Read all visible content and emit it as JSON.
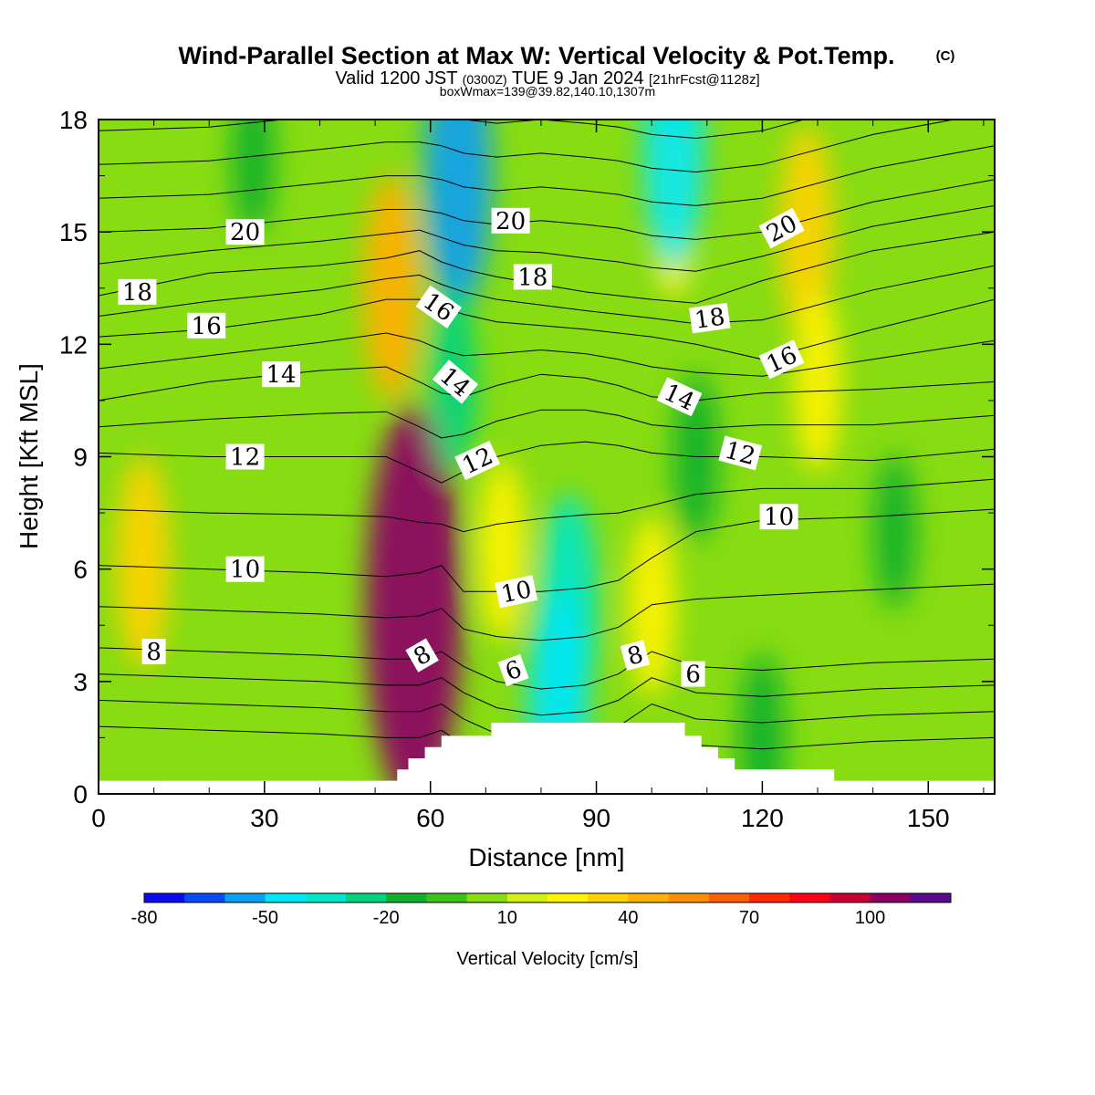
{
  "title": {
    "main": "Wind-Parallel Section at Max W: Vertical Velocity & Pot.Temp.",
    "copyright": "(C)",
    "valid_prefix": "Valid 1200 JST",
    "valid_utc": "(0300Z)",
    "valid_date": "TUE 9 Jan 2024",
    "forecast": "[21hrFcst@1128z]",
    "boxline": "boxWmax=139@39.82,140.10,1307m"
  },
  "chart_data": {
    "type": "heatmap",
    "xlabel": "Distance [nm]",
    "ylabel": "Height [Kft MSL]",
    "xlim": [
      0,
      162
    ],
    "ylim": [
      0,
      18
    ],
    "x_ticks": [
      0,
      30,
      60,
      90,
      120,
      150
    ],
    "x_tick_labels": [
      "0",
      "30",
      "60",
      "90",
      "120",
      "150"
    ],
    "y_ticks": [
      0,
      3,
      6,
      9,
      12,
      15,
      18
    ],
    "y_tick_labels": [
      "0",
      "3",
      "6",
      "9",
      "12",
      "15",
      "18"
    ],
    "x_minor_step": 10,
    "y_minor_step": 1.5,
    "colorbar": {
      "label": "Vertical Velocity [cm/s]",
      "levels": [
        -80,
        -70,
        -60,
        -50,
        -40,
        -30,
        -20,
        -10,
        0,
        10,
        20,
        30,
        40,
        50,
        60,
        70,
        80,
        90,
        100,
        110,
        120
      ],
      "tick_labels": [
        "-80",
        "-50",
        "-20",
        "10",
        "40",
        "70",
        "100"
      ],
      "colors": [
        "#0b0bf0",
        "#0a4af5",
        "#0aa0f0",
        "#00e6f5",
        "#00e6c8",
        "#00d27d",
        "#11b02c",
        "#3bc31a",
        "#87dc12",
        "#d2f014",
        "#fff200",
        "#ffd200",
        "#ffb000",
        "#ff9000",
        "#ff6000",
        "#ff2a00",
        "#ff0014",
        "#c80032",
        "#8c0064",
        "#5a0a8c"
      ]
    },
    "vertical_velocity_features": [
      {
        "kind": "updraft",
        "x": 57,
        "y": 5.0,
        "w": 100
      },
      {
        "kind": "updraft",
        "x": 8,
        "y": 6.2,
        "w": 35
      },
      {
        "kind": "updraft",
        "x": 53,
        "y": 13.5,
        "w": 40
      },
      {
        "kind": "updraft",
        "x": 73,
        "y": 6.5,
        "w": 25
      },
      {
        "kind": "updraft",
        "x": 100,
        "y": 5.0,
        "w": 25
      },
      {
        "kind": "updraft",
        "x": 104,
        "y": 15.5,
        "w": 20
      },
      {
        "kind": "updraft",
        "x": 128,
        "y": 15.0,
        "w": 35
      },
      {
        "kind": "updraft",
        "x": 130,
        "y": 11.0,
        "w": 25
      },
      {
        "kind": "downdraft",
        "x": 65,
        "y": 16.5,
        "w": -55
      },
      {
        "kind": "downdraft",
        "x": 64,
        "y": 11.0,
        "w": -25
      },
      {
        "kind": "downdraft",
        "x": 85,
        "y": 5.0,
        "w": -40
      },
      {
        "kind": "downdraft",
        "x": 83,
        "y": 2.3,
        "w": -45
      },
      {
        "kind": "downdraft",
        "x": 104,
        "y": 17.2,
        "w": -45
      },
      {
        "kind": "downdraft",
        "x": 108,
        "y": 9.0,
        "w": -20
      },
      {
        "kind": "downdraft",
        "x": 144,
        "y": 7.0,
        "w": -15
      },
      {
        "kind": "downdraft",
        "x": 28,
        "y": 17.0,
        "w": -15
      },
      {
        "kind": "downdraft",
        "x": 120,
        "y": 1.5,
        "w": -20
      }
    ],
    "theta_contours_labeled": [
      {
        "value": 8,
        "x": [
          0,
          20,
          40,
          52,
          58,
          62,
          66,
          72,
          80,
          88,
          94,
          100,
          108,
          120,
          140,
          162
        ],
        "y": [
          3.9,
          3.8,
          3.7,
          3.6,
          3.6,
          3.8,
          3.4,
          3.0,
          2.8,
          2.9,
          3.2,
          3.8,
          3.4,
          3.3,
          3.5,
          3.6
        ]
      },
      {
        "value": 10,
        "x": [
          0,
          20,
          40,
          52,
          58,
          62,
          66,
          72,
          80,
          88,
          94,
          100,
          108,
          120,
          140,
          162
        ],
        "y": [
          6.1,
          6.0,
          5.9,
          5.8,
          5.9,
          6.1,
          5.4,
          5.4,
          5.4,
          5.5,
          5.7,
          6.3,
          7.0,
          7.3,
          7.4,
          7.6
        ]
      },
      {
        "value": 12,
        "x": [
          0,
          20,
          40,
          52,
          58,
          62,
          66,
          72,
          80,
          88,
          94,
          100,
          108,
          120,
          140,
          162
        ],
        "y": [
          9.1,
          9.0,
          9.0,
          9.0,
          8.6,
          8.3,
          8.6,
          9.0,
          9.3,
          9.4,
          9.3,
          9.1,
          9.0,
          9.0,
          8.9,
          9.2
        ]
      },
      {
        "value": 14,
        "x": [
          0,
          20,
          40,
          52,
          58,
          62,
          66,
          72,
          80,
          88,
          94,
          100,
          108,
          120,
          140,
          162
        ],
        "y": [
          10.5,
          11.0,
          11.3,
          11.4,
          11.0,
          10.7,
          10.6,
          10.9,
          11.2,
          11.1,
          10.9,
          10.6,
          10.5,
          10.7,
          10.8,
          11.0
        ]
      },
      {
        "value": 16,
        "x": [
          0,
          20,
          40,
          52,
          58,
          62,
          66,
          72,
          80,
          88,
          94,
          100,
          108,
          120,
          140,
          162
        ],
        "y": [
          12.2,
          12.4,
          12.8,
          13.2,
          13.2,
          13.0,
          12.8,
          12.6,
          12.5,
          12.4,
          12.3,
          12.2,
          12.0,
          11.6,
          12.4,
          13.2
        ]
      },
      {
        "value": 18,
        "x": [
          0,
          20,
          40,
          52,
          58,
          62,
          66,
          72,
          80,
          88,
          94,
          100,
          108,
          120,
          140,
          162
        ],
        "y": [
          13.3,
          13.9,
          14.1,
          14.3,
          14.5,
          14.2,
          14.0,
          13.8,
          13.6,
          13.4,
          13.3,
          13.2,
          13.1,
          13.7,
          14.5,
          15.0
        ]
      },
      {
        "value": 20,
        "x": [
          0,
          20,
          40,
          52,
          58,
          62,
          66,
          72,
          80,
          88,
          94,
          100,
          108,
          120,
          140,
          162
        ],
        "y": [
          15.0,
          15.1,
          15.4,
          15.6,
          15.6,
          15.5,
          15.3,
          15.2,
          15.3,
          15.2,
          15.1,
          14.9,
          14.8,
          15.0,
          15.8,
          16.4
        ]
      }
    ],
    "contour_labels": [
      {
        "text": "20",
        "x": 26.5,
        "y": 15.0,
        "angle": 0
      },
      {
        "text": "18",
        "x": 7.0,
        "y": 13.4,
        "angle": 0
      },
      {
        "text": "16",
        "x": 19.5,
        "y": 12.5,
        "angle": 0
      },
      {
        "text": "14",
        "x": 33.0,
        "y": 11.2,
        "angle": 0
      },
      {
        "text": "12",
        "x": 26.5,
        "y": 9.0,
        "angle": 0
      },
      {
        "text": "10",
        "x": 26.5,
        "y": 6.0,
        "angle": 0
      },
      {
        "text": "8",
        "x": 10.0,
        "y": 3.8,
        "angle": 0
      },
      {
        "text": "16",
        "x": 61.5,
        "y": 13.0,
        "angle": 35
      },
      {
        "text": "14",
        "x": 64.5,
        "y": 11.0,
        "angle": 40
      },
      {
        "text": "12",
        "x": 68.5,
        "y": 8.9,
        "angle": -25
      },
      {
        "text": "10",
        "x": 75.5,
        "y": 5.4,
        "angle": -12
      },
      {
        "text": "8",
        "x": 58.5,
        "y": 3.7,
        "angle": -30
      },
      {
        "text": "6",
        "x": 75.0,
        "y": 3.3,
        "angle": -20
      },
      {
        "text": "20",
        "x": 74.5,
        "y": 15.3,
        "angle": 0
      },
      {
        "text": "18",
        "x": 78.5,
        "y": 13.8,
        "angle": 0
      },
      {
        "text": "18",
        "x": 110.5,
        "y": 12.7,
        "angle": -8
      },
      {
        "text": "14",
        "x": 105.0,
        "y": 10.6,
        "angle": 25
      },
      {
        "text": "16",
        "x": 123.5,
        "y": 11.6,
        "angle": -25
      },
      {
        "text": "12",
        "x": 116.0,
        "y": 9.1,
        "angle": 15
      },
      {
        "text": "10",
        "x": 123.0,
        "y": 7.4,
        "angle": 0
      },
      {
        "text": "20",
        "x": 123.5,
        "y": 15.1,
        "angle": -28
      },
      {
        "text": "8",
        "x": 97.0,
        "y": 3.7,
        "angle": -15
      },
      {
        "text": "6",
        "x": 107.5,
        "y": 3.2,
        "angle": 0
      }
    ],
    "terrain_profile": {
      "x": [
        0,
        54,
        54,
        56,
        56,
        59,
        59,
        62,
        62,
        71,
        71,
        74,
        74,
        93,
        93,
        106,
        106,
        109,
        109,
        112,
        112,
        115,
        115,
        118,
        118,
        133,
        133,
        162
      ],
      "y": [
        0.35,
        0.35,
        0.65,
        0.65,
        0.95,
        0.95,
        1.25,
        1.25,
        1.55,
        1.55,
        1.9,
        1.9,
        1.9,
        1.9,
        1.9,
        1.9,
        1.55,
        1.55,
        1.25,
        1.25,
        0.95,
        0.95,
        0.65,
        0.65,
        0.65,
        0.65,
        0.35,
        0.35
      ]
    }
  }
}
